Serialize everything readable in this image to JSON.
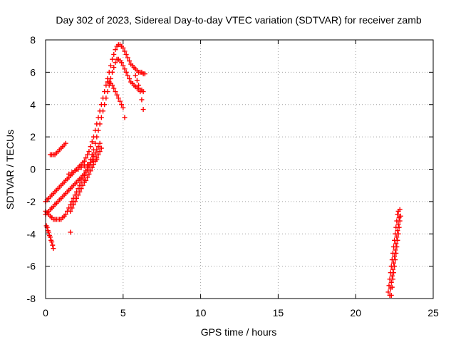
{
  "chart_data": {
    "type": "scatter",
    "title": "Day 302 of 2023, Sidereal Day-to-day VTEC variation (SDTVAR) for receiver zamb",
    "xlabel": "GPS time / hours",
    "ylabel": "SDTVAR / TECUs",
    "xlim": [
      0,
      25
    ],
    "ylim": [
      -8,
      8
    ],
    "xticks": [
      0,
      5,
      10,
      15,
      20,
      25
    ],
    "yticks": [
      -8,
      -6,
      -4,
      -2,
      0,
      2,
      4,
      6,
      8
    ],
    "grid": true,
    "marker": "plus",
    "color": "#ff0000",
    "series": [
      {
        "name": "",
        "x": [
          0.0,
          0.1,
          0.2,
          0.3,
          0.4,
          0.5,
          0.6,
          0.7,
          0.8,
          0.9,
          1.0,
          1.1,
          1.2,
          1.3,
          1.4,
          1.5,
          1.6,
          1.7,
          1.8,
          1.9,
          2.0,
          2.1,
          2.2,
          2.3,
          2.4,
          2.5,
          2.6,
          2.7,
          2.8,
          2.9,
          3.0,
          3.1,
          3.2,
          3.3,
          3.4,
          3.5,
          3.6,
          3.7,
          3.8,
          3.9,
          4.0,
          4.1,
          4.2,
          4.3,
          4.4,
          4.5,
          4.6,
          4.7,
          4.8,
          4.9,
          5.0,
          5.1,
          5.2,
          5.3,
          5.4,
          5.5,
          5.6,
          5.7,
          5.8,
          5.9,
          6.0,
          6.1,
          6.2,
          6.3,
          6.4
        ],
        "y": [
          -2.0,
          -1.9,
          -1.8,
          -1.7,
          -1.6,
          -1.5,
          -1.4,
          -1.3,
          -1.2,
          -1.1,
          -1.0,
          -0.9,
          -0.8,
          -0.7,
          -0.6,
          -0.5,
          -0.4,
          -0.3,
          -0.2,
          -0.1,
          0.0,
          0.1,
          0.2,
          0.3,
          0.4,
          0.5,
          0.7,
          0.9,
          1.1,
          1.4,
          1.7,
          2.0,
          2.4,
          2.8,
          3.2,
          3.6,
          4.0,
          4.4,
          4.8,
          5.2,
          5.6,
          6.0,
          6.4,
          6.8,
          7.1,
          7.4,
          7.6,
          7.7,
          7.7,
          7.6,
          7.5,
          7.3,
          7.1,
          6.9,
          6.7,
          6.5,
          6.4,
          6.3,
          6.2,
          6.1,
          6.0,
          6.0,
          6.0,
          5.9,
          5.9
        ]
      },
      {
        "name": "",
        "x": [
          0.0,
          0.1,
          0.2,
          0.3,
          0.4,
          0.5,
          0.6,
          0.7,
          0.8,
          0.9,
          1.0,
          1.1,
          1.2,
          1.3,
          1.4,
          1.5,
          1.6,
          1.7,
          1.8,
          1.9,
          2.0,
          2.1,
          2.2,
          2.3,
          2.4,
          2.5,
          2.6,
          2.7,
          2.8,
          2.9,
          3.0,
          3.1,
          3.2,
          3.3,
          3.4,
          3.5,
          3.6,
          3.7,
          3.8,
          3.9,
          4.0,
          4.1,
          4.2,
          4.3,
          4.4,
          4.5,
          4.6,
          4.7,
          4.8,
          4.9,
          5.0,
          5.1,
          5.2,
          5.3,
          5.4,
          5.5,
          5.6,
          5.7,
          5.8,
          5.9,
          6.0,
          6.1,
          6.2,
          6.3
        ],
        "y": [
          -2.8,
          -2.7,
          -2.6,
          -2.5,
          -2.4,
          -2.3,
          -2.2,
          -2.1,
          -2.0,
          -1.9,
          -1.8,
          -1.7,
          -1.6,
          -1.5,
          -1.4,
          -1.3,
          -1.2,
          -1.1,
          -1.0,
          -0.9,
          -0.8,
          -0.7,
          -0.6,
          -0.5,
          -0.4,
          -0.3,
          -0.1,
          0.1,
          0.3,
          0.6,
          0.9,
          1.2,
          1.6,
          2.0,
          2.4,
          2.8,
          3.2,
          3.6,
          4.0,
          4.4,
          4.8,
          5.2,
          5.6,
          6.0,
          6.3,
          6.6,
          6.8,
          6.8,
          6.7,
          6.6,
          6.4,
          6.2,
          6.0,
          5.8,
          5.6,
          5.4,
          5.3,
          5.2,
          5.1,
          5.0,
          5.0,
          4.9,
          4.9,
          4.8
        ]
      },
      {
        "name": "",
        "x": [
          0.0,
          0.1,
          0.2,
          0.3,
          0.4,
          0.5,
          0.6,
          0.7,
          0.8,
          0.9,
          1.0,
          1.1,
          1.2,
          1.3,
          1.4,
          1.5,
          1.6,
          1.7,
          1.8,
          1.9,
          2.0,
          2.1,
          2.2,
          2.3,
          2.4,
          2.5,
          2.6,
          2.7,
          2.8,
          2.9,
          3.0,
          3.1,
          3.2,
          3.3,
          3.4,
          3.5
        ],
        "y": [
          -2.6,
          -2.7,
          -2.8,
          -2.9,
          -3.0,
          -3.1,
          -3.1,
          -3.1,
          -3.1,
          -3.1,
          -3.1,
          -3.0,
          -2.9,
          -2.8,
          -2.6,
          -2.4,
          -2.2,
          -2.0,
          -1.8,
          -1.6,
          -1.4,
          -1.2,
          -1.0,
          -0.8,
          -0.6,
          -0.4,
          -0.2,
          0.0,
          0.2,
          0.4,
          0.6,
          0.8,
          1.0,
          1.2,
          1.4,
          1.6
        ]
      },
      {
        "name": "",
        "x": [
          1.6,
          1.7,
          1.8,
          1.9,
          2.0,
          2.1,
          2.2,
          2.3,
          2.4,
          2.5,
          2.6,
          2.7,
          2.8,
          2.9,
          3.0,
          3.1,
          3.2,
          3.3,
          3.4,
          3.5,
          3.6
        ],
        "y": [
          -2.6,
          -2.4,
          -2.2,
          -2.0,
          -1.8,
          -1.6,
          -1.4,
          -1.2,
          -1.0,
          -0.8,
          -0.7,
          -0.5,
          -0.3,
          -0.1,
          0.1,
          0.3,
          0.5,
          0.7,
          0.9,
          1.1,
          1.3
        ]
      },
      {
        "name": "",
        "x": [
          1.5,
          1.7,
          1.9,
          2.1,
          2.3,
          2.5,
          2.7,
          2.9,
          3.1,
          3.3
        ],
        "y": [
          -0.3,
          -0.2,
          -0.1,
          0.0,
          0.1,
          0.2,
          0.3,
          0.4,
          0.5,
          0.6
        ]
      },
      {
        "name": "",
        "x": [
          0.3,
          0.4,
          0.5,
          0.6,
          0.7,
          0.8,
          0.9,
          1.0,
          1.1,
          1.2,
          1.3
        ],
        "y": [
          0.9,
          0.9,
          0.9,
          0.9,
          1.0,
          1.1,
          1.2,
          1.3,
          1.4,
          1.5,
          1.6
        ]
      },
      {
        "name": "",
        "x": [
          0.05,
          0.1,
          0.15,
          0.2,
          0.25,
          0.3,
          0.35,
          0.4,
          0.45,
          0.5
        ],
        "y": [
          -3.5,
          -3.6,
          -3.8,
          -3.9,
          -4.1,
          -4.2,
          -4.4,
          -4.5,
          -4.7,
          -4.9
        ]
      },
      {
        "name": "",
        "x": [
          1.6
        ],
        "y": [
          -3.9
        ]
      },
      {
        "name": "",
        "x": [
          4.0,
          4.1,
          4.2,
          4.3,
          4.4,
          4.5,
          4.6,
          4.7,
          4.8,
          4.9,
          5.0,
          5.1
        ],
        "y": [
          5.4,
          5.4,
          5.3,
          5.2,
          5.0,
          4.8,
          4.6,
          4.4,
          4.2,
          4.0,
          3.8,
          3.2
        ]
      },
      {
        "name": "",
        "x": [
          5.8,
          5.9,
          6.0,
          6.1,
          6.2,
          6.3
        ],
        "y": [
          5.8,
          5.5,
          5.2,
          4.8,
          4.3,
          3.7
        ]
      },
      {
        "name": "",
        "x": [
          22.2,
          22.25,
          22.3,
          22.35,
          22.4,
          22.45,
          22.5,
          22.55,
          22.6,
          22.65,
          22.7,
          22.75,
          22.8,
          22.85
        ],
        "y": [
          -7.8,
          -7.4,
          -7.0,
          -6.6,
          -6.2,
          -5.8,
          -5.4,
          -5.0,
          -4.6,
          -4.2,
          -3.8,
          -3.4,
          -3.0,
          -2.5
        ]
      },
      {
        "name": "",
        "x": [
          22.1,
          22.15,
          22.2,
          22.25,
          22.3,
          22.35,
          22.4,
          22.45,
          22.5,
          22.55,
          22.6,
          22.65,
          22.7,
          22.75
        ],
        "y": [
          -7.6,
          -7.2,
          -6.8,
          -6.4,
          -6.0,
          -5.6,
          -5.2,
          -4.8,
          -4.4,
          -4.0,
          -3.6,
          -3.2,
          -2.8,
          -2.6
        ]
      },
      {
        "name": "",
        "x": [
          22.3,
          22.35,
          22.4,
          22.45,
          22.5,
          22.55,
          22.6,
          22.65,
          22.7,
          22.75,
          22.8,
          22.85,
          22.9
        ],
        "y": [
          -7.8,
          -7.3,
          -6.8,
          -6.4,
          -6.0,
          -5.6,
          -5.2,
          -4.8,
          -4.4,
          -4.0,
          -3.6,
          -3.2,
          -2.9
        ]
      }
    ]
  }
}
